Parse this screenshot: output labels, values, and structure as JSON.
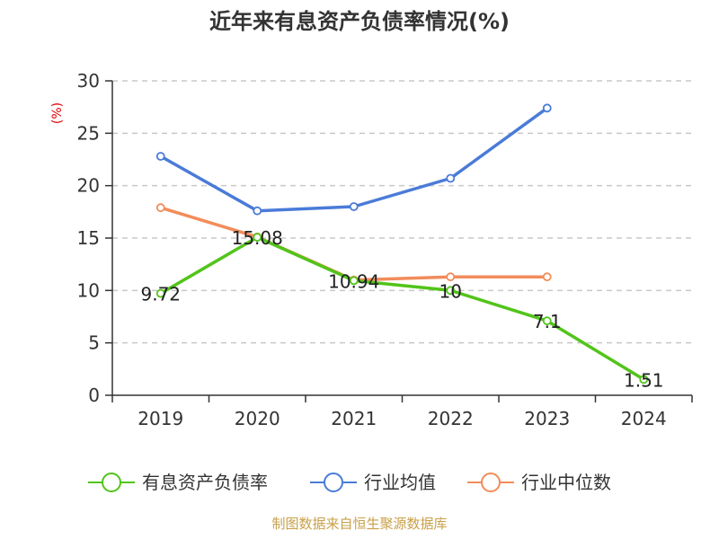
{
  "colors": {
    "primary": "#52c41a",
    "industry_avg": "#4a7bd8",
    "industry_median": "#f28c5a",
    "axis": "#333333",
    "grid": "#c8c8c8",
    "unit": "#e00000",
    "source": "#c8a04a"
  },
  "chart_data": {
    "type": "line",
    "title": "近年来有息资产负债率情况(%)",
    "ylabel": "(%)",
    "xlabel": "",
    "categories": [
      "2019",
      "2020",
      "2021",
      "2022",
      "2023",
      "2024"
    ],
    "ylim": [
      0,
      30
    ],
    "yticks": [
      0,
      5,
      10,
      15,
      20,
      25,
      30
    ],
    "grid": true,
    "legend_position": "bottom",
    "series": [
      {
        "name": "有息资产负债率",
        "color_key": "primary",
        "values": [
          9.72,
          15.08,
          10.94,
          10,
          7.1,
          1.51
        ],
        "labels": [
          "9.72",
          "15.08",
          "10.94",
          "10",
          "7.1",
          "1.51"
        ]
      },
      {
        "name": "行业均值",
        "color_key": "industry_avg",
        "values": [
          22.8,
          17.6,
          18.0,
          20.7,
          27.4,
          null
        ]
      },
      {
        "name": "行业中位数",
        "color_key": "industry_median",
        "values": [
          17.9,
          15.1,
          11.0,
          11.3,
          11.3,
          null
        ]
      }
    ]
  },
  "footer": {
    "source": "制图数据来自恒生聚源数据库"
  }
}
